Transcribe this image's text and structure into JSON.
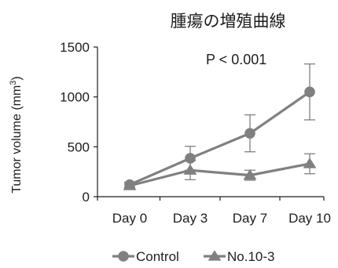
{
  "colors": {
    "line": "#808080",
    "axis": "#1e1e1e",
    "text": "#1e1e1e"
  },
  "chart_data": {
    "type": "line",
    "title": "腫瘍の増殖曲線",
    "ylabel_main": "Tumor volume (mm",
    "ylabel_sup": "3",
    "ylabel_end": ")",
    "xlabel": "",
    "categories": [
      "Day 0",
      "Day 3",
      "Day 7",
      "Day 10"
    ],
    "ylim": [
      0,
      1500
    ],
    "yticks": [
      "0",
      "500",
      "1000",
      "1500"
    ],
    "annotation": "P < 0.001",
    "grid": false,
    "legend": "bottom",
    "series": [
      {
        "name": "Control",
        "marker": "circle",
        "values": [
          120,
          385,
          635,
          1050
        ],
        "errors": [
          25,
          120,
          185,
          280
        ]
      },
      {
        "name": "No.10-3",
        "marker": "triangle",
        "values": [
          110,
          265,
          215,
          330
        ],
        "errors": [
          20,
          95,
          50,
          100
        ]
      }
    ]
  }
}
